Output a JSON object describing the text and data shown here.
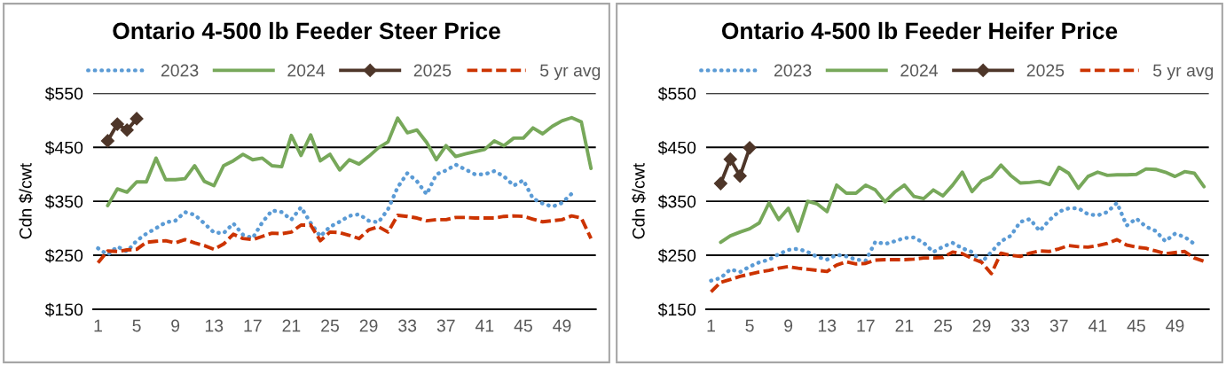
{
  "chart_data": [
    {
      "type": "line",
      "title": "Ontario 4-500 lb Feeder Steer Price",
      "ylabel": "Cdn $/cwt",
      "x": [
        1,
        2,
        3,
        4,
        5,
        6,
        7,
        8,
        9,
        10,
        11,
        12,
        13,
        14,
        15,
        16,
        17,
        18,
        19,
        20,
        21,
        22,
        23,
        24,
        25,
        26,
        27,
        28,
        29,
        30,
        31,
        32,
        33,
        34,
        35,
        36,
        37,
        38,
        39,
        40,
        41,
        42,
        43,
        44,
        45,
        46,
        47,
        48,
        49,
        50,
        51,
        52
      ],
      "xlim": [
        0.5,
        52.5
      ],
      "xticks": [
        1,
        5,
        9,
        13,
        17,
        21,
        25,
        29,
        33,
        37,
        41,
        45,
        49
      ],
      "ylim": [
        150,
        550
      ],
      "yticks": [
        {
          "value": 150,
          "label": "$150"
        },
        {
          "value": 250,
          "label": "$250"
        },
        {
          "value": 350,
          "label": "$350"
        },
        {
          "value": 450,
          "label": "$450"
        },
        {
          "value": 550,
          "label": "$550"
        }
      ],
      "grid": "y",
      "legend": "top",
      "series": [
        {
          "name": "2023",
          "color": "#5b9bd5",
          "line_style": "dotted",
          "marker": "none",
          "values": [
            263,
            251,
            266,
            257,
            277,
            290,
            300,
            311,
            314,
            330,
            325,
            309,
            292,
            291,
            309,
            288,
            282,
            311,
            333,
            330,
            316,
            339,
            310,
            285,
            303,
            312,
            323,
            326,
            314,
            311,
            335,
            376,
            402,
            387,
            363,
            400,
            407,
            418,
            409,
            400,
            400,
            406,
            396,
            379,
            389,
            355,
            346,
            340,
            347,
            364,
            null,
            null
          ]
        },
        {
          "name": "2024",
          "color": "#77a85a",
          "line_style": "solid",
          "marker": "none",
          "values": [
            null,
            342,
            373,
            367,
            386,
            386,
            430,
            390,
            390,
            392,
            416,
            387,
            379,
            416,
            425,
            437,
            427,
            430,
            416,
            414,
            472,
            435,
            473,
            425,
            437,
            408,
            427,
            419,
            433,
            449,
            460,
            504,
            477,
            482,
            459,
            427,
            453,
            433,
            438,
            442,
            446,
            462,
            453,
            467,
            467,
            486,
            475,
            489,
            499,
            505,
            497,
            411
          ]
        },
        {
          "name": "2025",
          "color": "#4e3629",
          "line_style": "solid",
          "marker": "diamond",
          "values": [
            null,
            462,
            493,
            482,
            503,
            null,
            null,
            null,
            null,
            null,
            null,
            null,
            null,
            null,
            null,
            null,
            null,
            null,
            null,
            null,
            null,
            null,
            null,
            null,
            null,
            null,
            null,
            null,
            null,
            null,
            null,
            null,
            null,
            null,
            null,
            null,
            null,
            null,
            null,
            null,
            null,
            null,
            null,
            null,
            null,
            null,
            null,
            null,
            null,
            null,
            null,
            null
          ]
        },
        {
          "name": "5 yr avg",
          "color": "#cc3300",
          "line_style": "dashed",
          "marker": "none",
          "values": [
            236,
            258,
            257,
            260,
            261,
            274,
            276,
            277,
            273,
            279,
            273,
            268,
            261,
            271,
            289,
            281,
            279,
            285,
            291,
            290,
            293,
            306,
            306,
            277,
            293,
            292,
            287,
            281,
            297,
            303,
            293,
            324,
            322,
            319,
            314,
            316,
            316,
            320,
            320,
            319,
            319,
            319,
            322,
            323,
            322,
            317,
            312,
            314,
            316,
            323,
            319,
            281
          ]
        }
      ]
    },
    {
      "type": "line",
      "title": "Ontario 4-500 lb Feeder Heifer Price",
      "ylabel": "Cdn $/cwt",
      "x": [
        1,
        2,
        3,
        4,
        5,
        6,
        7,
        8,
        9,
        10,
        11,
        12,
        13,
        14,
        15,
        16,
        17,
        18,
        19,
        20,
        21,
        22,
        23,
        24,
        25,
        26,
        27,
        28,
        29,
        30,
        31,
        32,
        33,
        34,
        35,
        36,
        37,
        38,
        39,
        40,
        41,
        42,
        43,
        44,
        45,
        46,
        47,
        48,
        49,
        50,
        51,
        52
      ],
      "xlim": [
        0.5,
        52.5
      ],
      "xticks": [
        1,
        5,
        9,
        13,
        17,
        21,
        25,
        29,
        33,
        37,
        41,
        45,
        49
      ],
      "ylim": [
        150,
        550
      ],
      "yticks": [
        {
          "value": 150,
          "label": "$150"
        },
        {
          "value": 250,
          "label": "$250"
        },
        {
          "value": 350,
          "label": "$350"
        },
        {
          "value": 450,
          "label": "$450"
        },
        {
          "value": 550,
          "label": "$550"
        }
      ],
      "grid": "y",
      "legend": "top",
      "series": [
        {
          "name": "2023",
          "color": "#5b9bd5",
          "line_style": "dotted",
          "marker": "none",
          "values": [
            203,
            208,
            224,
            219,
            229,
            237,
            242,
            252,
            260,
            262,
            256,
            247,
            242,
            251,
            248,
            242,
            240,
            275,
            271,
            276,
            282,
            283,
            273,
            256,
            266,
            273,
            263,
            256,
            237,
            256,
            276,
            286,
            312,
            317,
            295,
            315,
            331,
            337,
            337,
            326,
            324,
            330,
            347,
            305,
            318,
            303,
            295,
            276,
            290,
            284,
            271,
            null
          ]
        },
        {
          "name": "2024",
          "color": "#77a85a",
          "line_style": "solid",
          "marker": "none",
          "values": [
            null,
            274,
            286,
            293,
            299,
            310,
            347,
            316,
            337,
            295,
            350,
            345,
            331,
            380,
            365,
            365,
            380,
            371,
            349,
            367,
            380,
            359,
            355,
            371,
            360,
            380,
            404,
            368,
            388,
            396,
            417,
            398,
            384,
            385,
            387,
            381,
            413,
            402,
            374,
            396,
            404,
            398,
            399,
            399,
            400,
            410,
            409,
            404,
            396,
            405,
            402,
            377
          ]
        },
        {
          "name": "2025",
          "color": "#4e3629",
          "line_style": "solid",
          "marker": "diamond",
          "values": [
            null,
            383,
            428,
            397,
            449,
            null,
            null,
            null,
            null,
            null,
            null,
            null,
            null,
            null,
            null,
            null,
            null,
            null,
            null,
            null,
            null,
            null,
            null,
            null,
            null,
            null,
            null,
            null,
            null,
            null,
            null,
            null,
            null,
            null,
            null,
            null,
            null,
            null,
            null,
            null,
            null,
            null,
            null,
            null,
            null,
            null,
            null,
            null,
            null,
            null,
            null,
            null
          ]
        },
        {
          "name": "5 yr avg",
          "color": "#cc3300",
          "line_style": "dashed",
          "marker": "none",
          "values": [
            182,
            200,
            205,
            211,
            215,
            219,
            222,
            226,
            229,
            226,
            224,
            222,
            220,
            232,
            238,
            234,
            235,
            241,
            242,
            242,
            242,
            243,
            245,
            245,
            246,
            256,
            253,
            244,
            237,
            216,
            254,
            250,
            248,
            254,
            258,
            257,
            262,
            268,
            266,
            265,
            268,
            272,
            279,
            269,
            265,
            263,
            258,
            253,
            255,
            257,
            245,
            239
          ]
        }
      ]
    }
  ]
}
